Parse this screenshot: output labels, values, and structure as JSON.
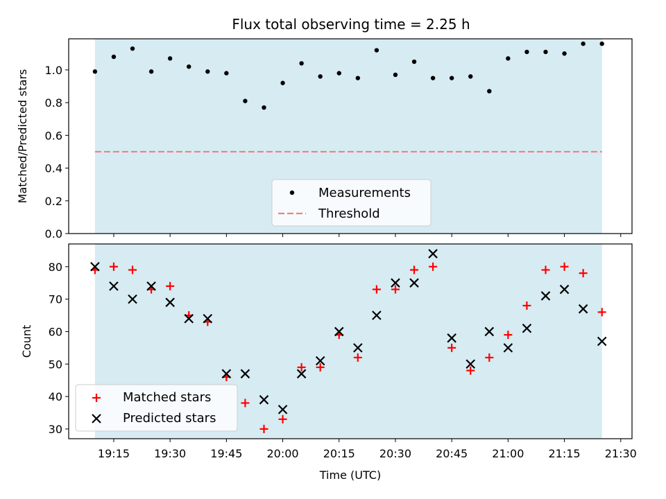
{
  "figure": {
    "title": "Flux total observing time = 2.25 h"
  },
  "colors": {
    "background": "#ffffff",
    "span_fill": "#add8e6",
    "matched": "#ff0000",
    "predicted": "#000000",
    "measurement": "#000000",
    "threshold": "#f08080"
  },
  "chart_data": [
    {
      "type": "scatter",
      "panel": "top",
      "title": "Flux total observing time = 2.25 h",
      "xlabel": "",
      "ylabel": "Matched/Predicted stars",
      "ylim": [
        0,
        1.19
      ],
      "yticks": [
        "0.0",
        "0.2",
        "0.4",
        "0.6",
        "0.8",
        "1.0"
      ],
      "grid": false,
      "legend_position": "lower-center",
      "shaded_span": [
        "19:10",
        "21:25"
      ],
      "threshold": 0.5,
      "series": [
        {
          "name": "Measurements",
          "marker": "dot",
          "x": [
            "19:10",
            "19:15",
            "19:20",
            "19:25",
            "19:30",
            "19:35",
            "19:40",
            "19:45",
            "19:50",
            "19:55",
            "20:00",
            "20:05",
            "20:10",
            "20:15",
            "20:20",
            "20:25",
            "20:30",
            "20:35",
            "20:40",
            "20:45",
            "20:50",
            "20:55",
            "21:00",
            "21:05",
            "21:10",
            "21:15",
            "21:20",
            "21:25"
          ],
          "values": [
            0.99,
            1.08,
            1.13,
            0.99,
            1.07,
            1.02,
            0.99,
            0.98,
            0.81,
            0.77,
            0.92,
            1.04,
            0.96,
            0.98,
            0.95,
            1.12,
            0.97,
            1.05,
            0.95,
            0.95,
            0.96,
            0.87,
            1.07,
            1.11,
            1.11,
            1.1,
            1.16,
            1.16
          ]
        },
        {
          "name": "Threshold",
          "marker": "dashed-line",
          "x": [
            "19:10",
            "21:25"
          ],
          "values": [
            0.5,
            0.5
          ]
        }
      ]
    },
    {
      "type": "scatter",
      "panel": "bottom",
      "xlabel": "Time (UTC)",
      "ylabel": "Count",
      "ylim": [
        27,
        87
      ],
      "xlim": [
        "19:03",
        "21:33"
      ],
      "xticks": [
        "19:15",
        "19:30",
        "19:45",
        "20:00",
        "20:15",
        "20:30",
        "20:45",
        "21:00",
        "21:15",
        "21:30"
      ],
      "yticks": [
        "30",
        "40",
        "50",
        "60",
        "70",
        "80"
      ],
      "grid": false,
      "legend_position": "lower-left",
      "shaded_span": [
        "19:10",
        "21:25"
      ],
      "x": [
        "19:10",
        "19:15",
        "19:20",
        "19:25",
        "19:30",
        "19:35",
        "19:40",
        "19:45",
        "19:50",
        "19:55",
        "20:00",
        "20:05",
        "20:10",
        "20:15",
        "20:20",
        "20:25",
        "20:30",
        "20:35",
        "20:40",
        "20:45",
        "20:50",
        "20:55",
        "21:00",
        "21:05",
        "21:10",
        "21:15",
        "21:20",
        "21:25"
      ],
      "series": [
        {
          "name": "Matched stars",
          "marker": "plus",
          "values": [
            79,
            80,
            79,
            73,
            74,
            65,
            63,
            46,
            38,
            30,
            33,
            49,
            49,
            59,
            52,
            73,
            73,
            79,
            80,
            55,
            48,
            52,
            59,
            68,
            79,
            80,
            78,
            66
          ]
        },
        {
          "name": "Predicted stars",
          "marker": "x",
          "values": [
            80,
            74,
            70,
            74,
            69,
            64,
            64,
            47,
            47,
            39,
            36,
            47,
            51,
            60,
            55,
            65,
            75,
            75,
            84,
            58,
            50,
            60,
            55,
            61,
            71,
            73,
            67,
            57
          ]
        }
      ]
    }
  ]
}
